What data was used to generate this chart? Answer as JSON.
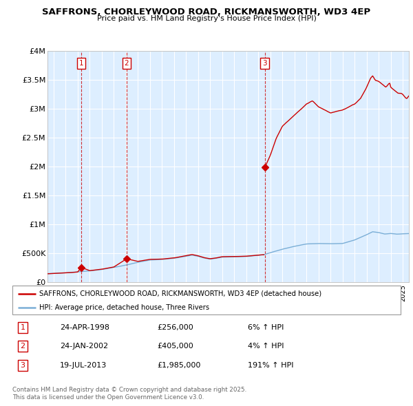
{
  "title": "SAFFRONS, CHORLEYWOOD ROAD, RICKMANSWORTH, WD3 4EP",
  "subtitle": "Price paid vs. HM Land Registry's House Price Index (HPI)",
  "legend_line1": "SAFFRONS, CHORLEYWOOD ROAD, RICKMANSWORTH, WD3 4EP (detached house)",
  "legend_line2": "HPI: Average price, detached house, Three Rivers",
  "sale1_label": "1",
  "sale1_date": "24-APR-1998",
  "sale1_price": "£256,000",
  "sale1_hpi": "6% ↑ HPI",
  "sale2_label": "2",
  "sale2_date": "24-JAN-2002",
  "sale2_price": "£405,000",
  "sale2_hpi": "4% ↑ HPI",
  "sale3_label": "3",
  "sale3_date": "19-JUL-2013",
  "sale3_price": "£1,985,000",
  "sale3_hpi": "191% ↑ HPI",
  "footnote": "Contains HM Land Registry data © Crown copyright and database right 2025.\nThis data is licensed under the Open Government Licence v3.0.",
  "sale_color": "#cc0000",
  "hpi_color": "#7aaed6",
  "bg_color": "#ddeeff",
  "ylim_max": 4000000,
  "yticks": [
    0,
    500000,
    1000000,
    1500000,
    2000000,
    2500000,
    3000000,
    3500000,
    4000000
  ],
  "ytick_labels": [
    "£0",
    "£500K",
    "£1M",
    "£1.5M",
    "£2M",
    "£2.5M",
    "£3M",
    "£3.5M",
    "£4M"
  ],
  "sale1_x": 1998.31,
  "sale1_y": 256000,
  "sale2_x": 2002.07,
  "sale2_y": 405000,
  "sale3_x": 2013.54,
  "sale3_y": 1985000,
  "xmin": 1995.5,
  "xmax": 2025.5,
  "hpi_anchor": [
    [
      1995.5,
      148000
    ],
    [
      1996.0,
      152000
    ],
    [
      1997.0,
      162000
    ],
    [
      1998.0,
      178000
    ],
    [
      1999.0,
      196000
    ],
    [
      2000.0,
      220000
    ],
    [
      2001.0,
      255000
    ],
    [
      2002.0,
      295000
    ],
    [
      2003.0,
      345000
    ],
    [
      2004.0,
      385000
    ],
    [
      2005.0,
      395000
    ],
    [
      2006.0,
      415000
    ],
    [
      2007.0,
      450000
    ],
    [
      2007.5,
      470000
    ],
    [
      2008.0,
      450000
    ],
    [
      2008.5,
      420000
    ],
    [
      2009.0,
      400000
    ],
    [
      2009.5,
      415000
    ],
    [
      2010.0,
      435000
    ],
    [
      2011.0,
      438000
    ],
    [
      2012.0,
      445000
    ],
    [
      2013.0,
      465000
    ],
    [
      2013.54,
      480000
    ],
    [
      2014.0,
      510000
    ],
    [
      2015.0,
      570000
    ],
    [
      2016.0,
      620000
    ],
    [
      2017.0,
      660000
    ],
    [
      2018.0,
      670000
    ],
    [
      2019.0,
      665000
    ],
    [
      2020.0,
      670000
    ],
    [
      2021.0,
      730000
    ],
    [
      2022.0,
      820000
    ],
    [
      2022.5,
      870000
    ],
    [
      2023.0,
      855000
    ],
    [
      2023.5,
      830000
    ],
    [
      2024.0,
      840000
    ],
    [
      2024.5,
      830000
    ],
    [
      2025.0,
      835000
    ],
    [
      2025.5,
      840000
    ]
  ],
  "sale_anchor": [
    [
      1995.5,
      145000
    ],
    [
      1996.0,
      150000
    ],
    [
      1997.0,
      160000
    ],
    [
      1998.0,
      175000
    ],
    [
      1998.31,
      256000
    ],
    [
      1999.0,
      200000
    ],
    [
      2000.0,
      225000
    ],
    [
      2001.0,
      262000
    ],
    [
      2002.07,
      405000
    ],
    [
      2003.0,
      360000
    ],
    [
      2004.0,
      395000
    ],
    [
      2005.0,
      400000
    ],
    [
      2006.0,
      420000
    ],
    [
      2007.0,
      460000
    ],
    [
      2007.5,
      480000
    ],
    [
      2008.0,
      458000
    ],
    [
      2008.5,
      425000
    ],
    [
      2009.0,
      405000
    ],
    [
      2009.5,
      418000
    ],
    [
      2010.0,
      440000
    ],
    [
      2011.0,
      442000
    ],
    [
      2012.0,
      450000
    ],
    [
      2013.0,
      470000
    ],
    [
      2013.49,
      475000
    ],
    [
      2013.54,
      1985000
    ],
    [
      2014.0,
      2200000
    ],
    [
      2014.5,
      2500000
    ],
    [
      2015.0,
      2700000
    ],
    [
      2015.5,
      2800000
    ],
    [
      2016.0,
      2900000
    ],
    [
      2016.5,
      3000000
    ],
    [
      2017.0,
      3100000
    ],
    [
      2017.5,
      3150000
    ],
    [
      2018.0,
      3050000
    ],
    [
      2018.5,
      3000000
    ],
    [
      2019.0,
      2950000
    ],
    [
      2019.5,
      2980000
    ],
    [
      2020.0,
      3000000
    ],
    [
      2020.5,
      3050000
    ],
    [
      2021.0,
      3100000
    ],
    [
      2021.5,
      3200000
    ],
    [
      2022.0,
      3400000
    ],
    [
      2022.3,
      3550000
    ],
    [
      2022.5,
      3600000
    ],
    [
      2022.7,
      3520000
    ],
    [
      2023.0,
      3500000
    ],
    [
      2023.3,
      3450000
    ],
    [
      2023.6,
      3400000
    ],
    [
      2023.9,
      3480000
    ],
    [
      2024.0,
      3400000
    ],
    [
      2024.3,
      3350000
    ],
    [
      2024.6,
      3300000
    ],
    [
      2024.9,
      3300000
    ],
    [
      2025.0,
      3280000
    ],
    [
      2025.3,
      3200000
    ],
    [
      2025.5,
      3250000
    ]
  ]
}
